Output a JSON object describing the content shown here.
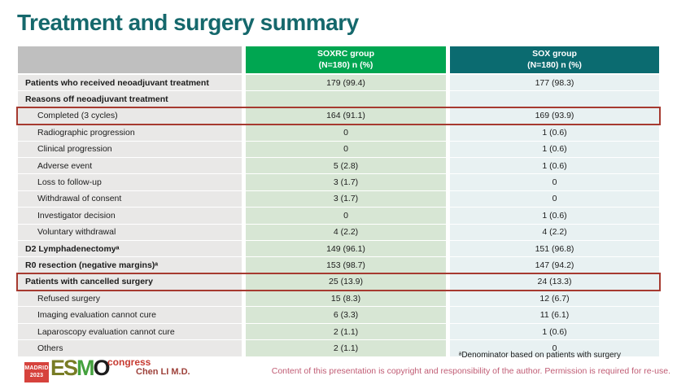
{
  "slide": {
    "title": "Treatment and surgery summary",
    "presenter": "Chen LI M.D.",
    "footnote": "ᵃDenominator based on patients with surgery",
    "copyright": "Content of this presentation is copyright and responsibility of the author. Permission is required for re-use."
  },
  "logo": {
    "badge_line1": "MADRID",
    "badge_line2": "2023",
    "letter_e": "E",
    "letter_s": "S",
    "letter_m": "M",
    "letter_o": "O",
    "congress": "congress"
  },
  "table": {
    "columns": [
      {
        "name": "SOXRC group",
        "sub": "(N=180)  n (%)"
      },
      {
        "name": "SOX group",
        "sub": "(N=180)  n (%)"
      }
    ],
    "rows": [
      {
        "label": "Patients who received neoadjuvant treatment",
        "bold": true,
        "indent": false,
        "highlight": false,
        "soxrc": "179 (99.4)",
        "sox": "177 (98.3)"
      },
      {
        "label": "Reasons off neoadjuvant treatment",
        "bold": true,
        "indent": false,
        "highlight": false,
        "soxrc": "",
        "sox": ""
      },
      {
        "label": "Completed (3 cycles)",
        "bold": false,
        "indent": true,
        "highlight": true,
        "soxrc": "164 (91.1)",
        "sox": "169 (93.9)"
      },
      {
        "label": "Radiographic progression",
        "bold": false,
        "indent": true,
        "highlight": false,
        "soxrc": "0",
        "sox": "1 (0.6)"
      },
      {
        "label": "Clinical progression",
        "bold": false,
        "indent": true,
        "highlight": false,
        "soxrc": "0",
        "sox": "1 (0.6)"
      },
      {
        "label": "Adverse event",
        "bold": false,
        "indent": true,
        "highlight": false,
        "soxrc": "5 (2.8)",
        "sox": "1 (0.6)"
      },
      {
        "label": "Loss to follow-up",
        "bold": false,
        "indent": true,
        "highlight": false,
        "soxrc": "3 (1.7)",
        "sox": "0"
      },
      {
        "label": "Withdrawal of consent",
        "bold": false,
        "indent": true,
        "highlight": false,
        "soxrc": "3 (1.7)",
        "sox": "0"
      },
      {
        "label": "Investigator decision",
        "bold": false,
        "indent": true,
        "highlight": false,
        "soxrc": "0",
        "sox": "1 (0.6)"
      },
      {
        "label": "Voluntary withdrawal",
        "bold": false,
        "indent": true,
        "highlight": false,
        "soxrc": "4 (2.2)",
        "sox": "4 (2.2)"
      },
      {
        "label": "D2 Lymphadenectomyᵃ",
        "bold": true,
        "indent": false,
        "highlight": false,
        "soxrc": "149 (96.1)",
        "sox": "151 (96.8)"
      },
      {
        "label": "R0 resection (negative margins)ᵃ",
        "bold": true,
        "indent": false,
        "highlight": false,
        "soxrc": "153 (98.7)",
        "sox": "147 (94.2)"
      },
      {
        "label": "Patients with cancelled surgery",
        "bold": true,
        "indent": false,
        "highlight": true,
        "soxrc": "25 (13.9)",
        "sox": "24 (13.3)"
      },
      {
        "label": "Refused surgery",
        "bold": false,
        "indent": true,
        "highlight": false,
        "soxrc": "15 (8.3)",
        "sox": "12 (6.7)"
      },
      {
        "label": "Imaging evaluation cannot cure",
        "bold": false,
        "indent": true,
        "highlight": false,
        "soxrc": "6 (3.3)",
        "sox": "11 (6.1)"
      },
      {
        "label": "Laparoscopy evaluation cannot cure",
        "bold": false,
        "indent": true,
        "highlight": false,
        "soxrc": "2 (1.1)",
        "sox": "1 (0.6)"
      },
      {
        "label": "Others",
        "bold": false,
        "indent": true,
        "highlight": false,
        "soxrc": "2 (1.1)",
        "sox": "0"
      }
    ]
  },
  "colors": {
    "title_teal": "#15686c",
    "header_green": "#00a651",
    "header_teal": "#0b6b70",
    "header_gray": "#bfbfbf",
    "label_cell": "#e9e8e7",
    "soxrc_cell": "#d7e6d4",
    "sox_cell": "#e8f1f2",
    "highlight_red": "#a63a30",
    "copyright_pink": "#c05c74",
    "logo_red": "#d6423c"
  }
}
